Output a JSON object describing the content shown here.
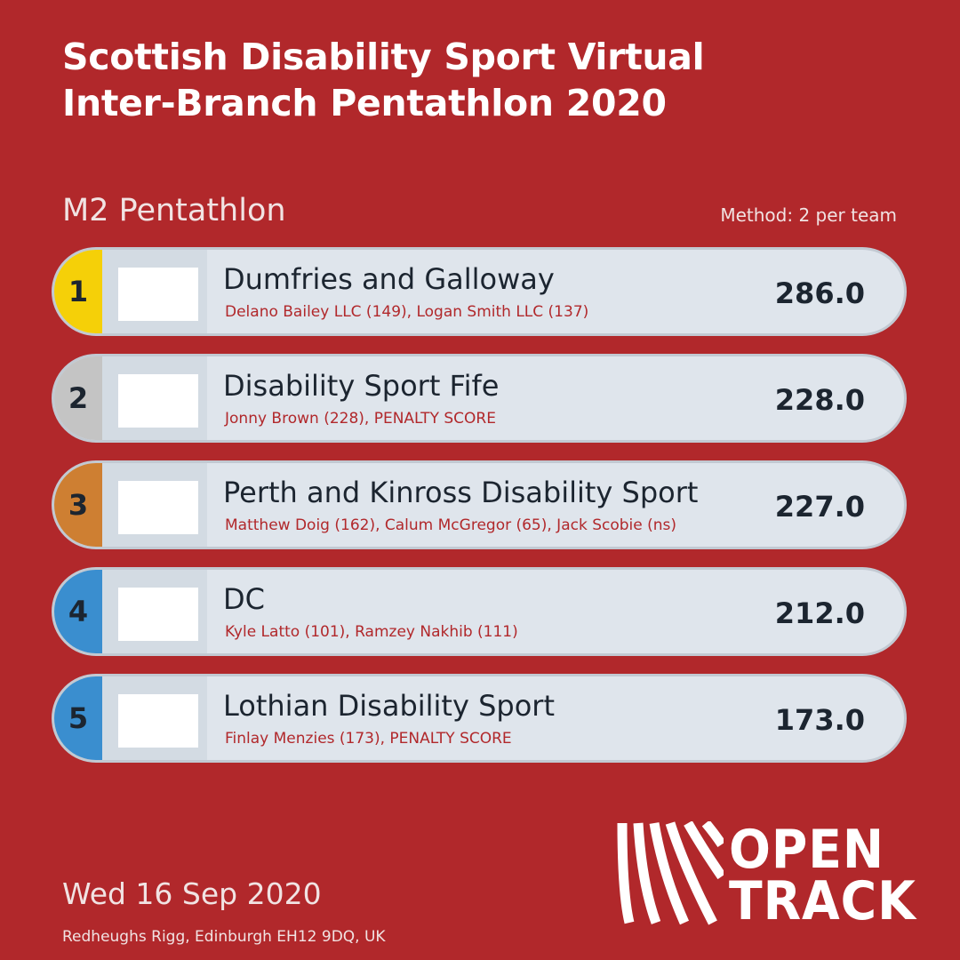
{
  "title_line1": "Scottish Disability Sport Virtual",
  "title_line2": "Inter-Branch Pentathlon 2020",
  "event": "M2 Pentathlon",
  "method": "Method: 2 per team",
  "rows": [
    {
      "rank": "1",
      "team": "Dumfries and Galloway",
      "members": "Delano Bailey LLC (149), Logan Smith LLC (137)",
      "score": "286.0",
      "color": "#f5d008"
    },
    {
      "rank": "2",
      "team": "Disability Sport Fife",
      "members": "Jonny Brown (228), PENALTY SCORE",
      "score": "228.0",
      "color": "#c4c4c4"
    },
    {
      "rank": "3",
      "team": "Perth and Kinross Disability Sport",
      "members": "Matthew Doig (162), Calum McGregor (65), Jack Scobie (ns)",
      "score": "227.0",
      "color": "#ce7f32"
    },
    {
      "rank": "4",
      "team": "DC",
      "members": "Kyle Latto (101), Ramzey Nakhib (111)",
      "score": "212.0",
      "color": "#3a8ecf"
    },
    {
      "rank": "5",
      "team": "Lothian Disability Sport",
      "members": "Finlay Menzies (173), PENALTY SCORE",
      "score": "173.0",
      "color": "#3a8ecf"
    }
  ],
  "date": "Wed 16 Sep 2020",
  "venue": "Redheughs Rigg, Edinburgh EH12 9DQ, UK",
  "brand": {
    "line1": "OPEN",
    "line2": "TRACK",
    "icon": "opentrack-logo-icon"
  },
  "colors": {
    "background": "#b1282b",
    "row_bg": "#dfe5ec",
    "accent_text": "#b1282b"
  }
}
